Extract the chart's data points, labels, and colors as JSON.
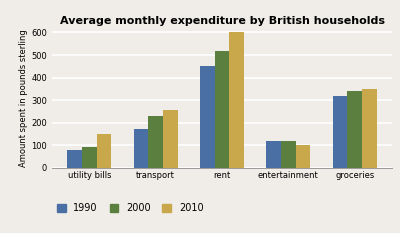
{
  "title": "Average monthly expenditure by British households",
  "ylabel": "Amount spent in pounds sterling",
  "categories": [
    "utility bills",
    "transport",
    "rent",
    "entertainment",
    "groceries"
  ],
  "years": [
    "1990",
    "2000",
    "2010"
  ],
  "values": {
    "1990": [
      80,
      170,
      450,
      120,
      320
    ],
    "2000": [
      90,
      230,
      520,
      120,
      340
    ],
    "2010": [
      150,
      255,
      600,
      100,
      350
    ]
  },
  "colors": {
    "1990": "#4a6fa5",
    "2000": "#5a7f3e",
    "2010": "#c9a84c"
  },
  "ylim": [
    0,
    620
  ],
  "yticks": [
    0,
    100,
    200,
    300,
    400,
    500,
    600
  ],
  "bar_width": 0.22,
  "background_color": "#f0ede8",
  "grid_color": "#ffffff",
  "title_fontsize": 8,
  "axis_fontsize": 6,
  "tick_fontsize": 6,
  "legend_fontsize": 7
}
